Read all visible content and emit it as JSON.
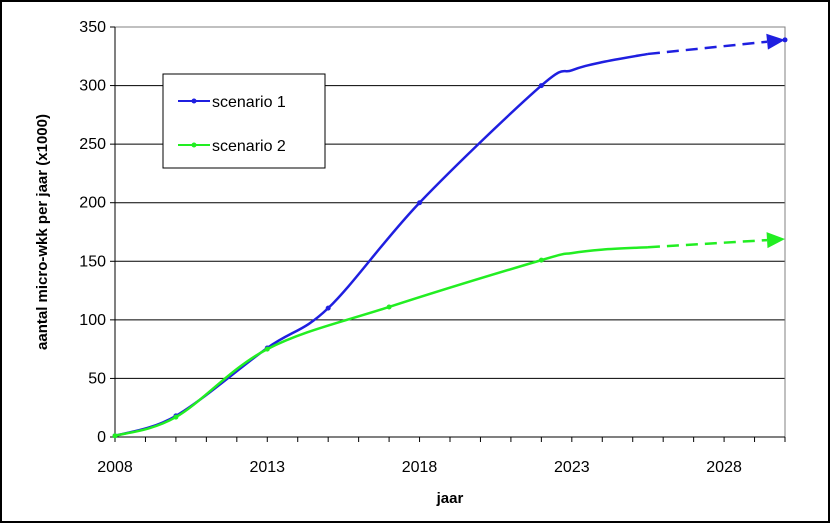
{
  "chart_data": {
    "type": "line",
    "title": "",
    "xlabel": "jaar",
    "ylabel": "aantal micro-wkk per jaar (x1000)",
    "xlim": [
      2008,
      2030
    ],
    "ylim": [
      0,
      350
    ],
    "xticks": [
      2008,
      2013,
      2018,
      2023,
      2028
    ],
    "yticks": [
      0,
      50,
      100,
      150,
      200,
      250,
      300,
      350
    ],
    "grid": "horizontal",
    "legend_position": "top-left",
    "series": [
      {
        "name": "scenario 1",
        "color": "#1f1fe0",
        "points": [
          [
            2008,
            1
          ],
          [
            2010,
            18
          ],
          [
            2013,
            76
          ],
          [
            2015,
            110
          ],
          [
            2018,
            200
          ],
          [
            2022,
            300
          ]
        ],
        "extension_solid": [
          [
            2022,
            300
          ],
          [
            2023,
            313
          ],
          [
            2024,
            320
          ],
          [
            2025.5,
            327
          ]
        ],
        "extension_dashed": [
          [
            2025.5,
            327
          ],
          [
            2030,
            339
          ]
        ]
      },
      {
        "name": "scenario 2",
        "color": "#22ee22",
        "points": [
          [
            2008,
            1
          ],
          [
            2010,
            17
          ],
          [
            2013,
            75
          ],
          [
            2017,
            111
          ],
          [
            2022,
            151
          ]
        ],
        "extension_solid": [
          [
            2022,
            151
          ],
          [
            2023,
            157
          ],
          [
            2024,
            160
          ],
          [
            2025.5,
            162
          ]
        ],
        "extension_dashed": [
          [
            2025.5,
            162
          ],
          [
            2030,
            169
          ]
        ]
      }
    ]
  }
}
